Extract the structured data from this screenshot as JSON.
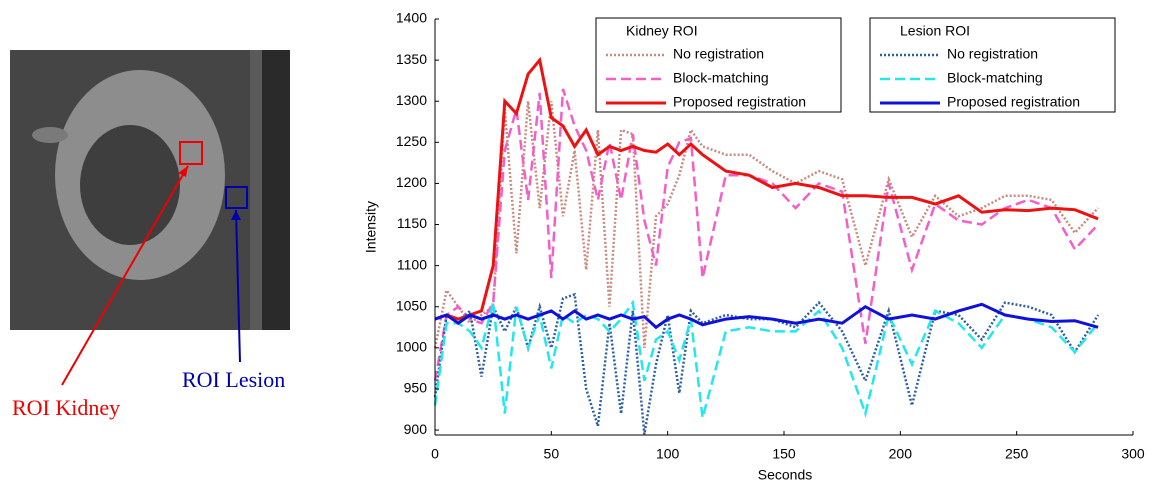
{
  "image_labels": {
    "kidney": "ROI Kidney",
    "lesion": "ROI Lesion"
  },
  "chart_data": {
    "type": "line",
    "xlabel": "Seconds",
    "ylabel": "Intensity",
    "xlim": [
      0,
      300
    ],
    "xticks": [
      0,
      50,
      100,
      150,
      200,
      250,
      300
    ],
    "ylim": [
      894,
      1400
    ],
    "yticks": [
      900,
      950,
      1000,
      1050,
      1100,
      1150,
      1200,
      1250,
      1300,
      1350,
      1400
    ],
    "x": [
      0,
      5,
      10,
      15,
      20,
      25,
      30,
      35,
      40,
      45,
      50,
      55,
      60,
      65,
      70,
      75,
      80,
      85,
      90,
      95,
      100,
      105,
      110,
      115,
      125,
      135,
      145,
      155,
      165,
      175,
      185,
      195,
      205,
      215,
      225,
      235,
      245,
      255,
      265,
      275,
      285
    ],
    "groups": [
      {
        "title": "Kidney ROI",
        "series": [
          {
            "name": "No registration",
            "color": "#c98a80",
            "style": "dotted",
            "values": [
              1000,
              1070,
              1050,
              1030,
              1040,
              1050,
              1290,
              1115,
              1300,
              1170,
              1300,
              1160,
              1240,
              1095,
              1265,
              1050,
              1265,
              1260,
              1000,
              1160,
              1175,
              1210,
              1265,
              1245,
              1235,
              1235,
              1215,
              1200,
              1215,
              1205,
              1100,
              1205,
              1135,
              1185,
              1160,
              1170,
              1185,
              1185,
              1180,
              1140,
              1170
            ]
          },
          {
            "name": "Block-matching",
            "color": "#f35fc8",
            "style": "dashed",
            "values": [
              960,
              1040,
              1050,
              1035,
              1030,
              1055,
              1240,
              1290,
              1180,
              1310,
              1085,
              1315,
              1270,
              1240,
              1180,
              1250,
              1180,
              1260,
              1155,
              1100,
              1220,
              1250,
              1255,
              1085,
              1210,
              1210,
              1200,
              1170,
              1200,
              1190,
              1005,
              1200,
              1095,
              1175,
              1155,
              1150,
              1170,
              1180,
              1170,
              1120,
              1150
            ]
          },
          {
            "name": "Proposed registration",
            "color": "#ee1111",
            "style": "solid",
            "values": [
              1035,
              1040,
              1035,
              1040,
              1045,
              1100,
              1300,
              1285,
              1333,
              1350,
              1280,
              1270,
              1245,
              1265,
              1235,
              1245,
              1240,
              1245,
              1240,
              1238,
              1248,
              1235,
              1248,
              1235,
              1215,
              1210,
              1195,
              1200,
              1195,
              1185,
              1185,
              1183,
              1183,
              1175,
              1185,
              1165,
              1168,
              1167,
              1170,
              1168,
              1157
            ]
          }
        ]
      },
      {
        "title": "Lesion ROI",
        "series": [
          {
            "name": "No registration",
            "color": "#2c5fa0",
            "style": "dotted",
            "values": [
              940,
              1040,
              1030,
              1045,
              965,
              1050,
              1020,
              1050,
              1000,
              1050,
              1000,
              1060,
              1065,
              950,
              905,
              1030,
              920,
              1045,
              895,
              980,
              1040,
              945,
              1045,
              1030,
              1040,
              1035,
              1035,
              1025,
              1055,
              1020,
              960,
              1045,
              930,
              1045,
              1040,
              1010,
              1055,
              1050,
              1040,
              995,
              1040
            ]
          },
          {
            "name": "Block-matching",
            "color": "#22e6f0",
            "style": "dashed",
            "values": [
              930,
              1030,
              1030,
              1020,
              1000,
              1055,
              920,
              1050,
              1000,
              1040,
              975,
              1040,
              1030,
              1040,
              1035,
              1020,
              1035,
              1055,
              960,
              1010,
              1020,
              985,
              1035,
              915,
              1020,
              1025,
              1020,
              1020,
              1045,
              1000,
              920,
              1040,
              980,
              1045,
              1030,
              1000,
              1040,
              1035,
              1025,
              995,
              1030
            ]
          },
          {
            "name": "Proposed registration",
            "color": "#1010dd",
            "style": "solid",
            "values": [
              1035,
              1040,
              1030,
              1040,
              1035,
              1040,
              1035,
              1040,
              1035,
              1040,
              1045,
              1035,
              1045,
              1035,
              1040,
              1035,
              1040,
              1035,
              1038,
              1025,
              1035,
              1040,
              1035,
              1028,
              1035,
              1038,
              1035,
              1030,
              1035,
              1030,
              1050,
              1035,
              1040,
              1035,
              1045,
              1053,
              1040,
              1035,
              1032,
              1033,
              1025
            ]
          }
        ]
      }
    ]
  }
}
